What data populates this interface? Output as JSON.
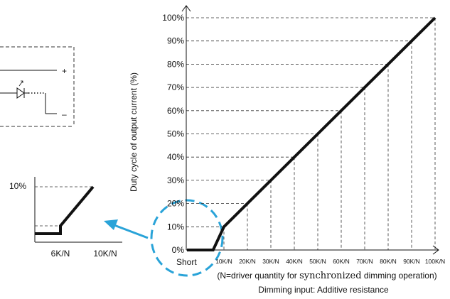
{
  "chart_data": {
    "type": "line",
    "ylabel": "Duty cycle of output current (%)",
    "xlabel_line1_pre": "(N=driver quantity for ",
    "xlabel_line1_serif": "synchronized",
    "xlabel_line1_post": " dimming operation)",
    "xlabel_line2": "Dimming input: Additive resistance",
    "x_categories": [
      "Short",
      "10K/N",
      "20K/N",
      "30K/N",
      "40K/N",
      "50K/N",
      "60K/N",
      "70K/N",
      "80K/N",
      "90K/N",
      "100K/N"
    ],
    "y_ticks": [
      "0%",
      "10%",
      "20%",
      "30%",
      "40%",
      "50%",
      "60%",
      "70%",
      "80%",
      "90%",
      "100%"
    ],
    "ylim": [
      0,
      100
    ],
    "grid": "dashed",
    "series": [
      {
        "x": [
          "Short",
          "6K/N",
          "10K/N",
          "20K/N",
          "30K/N",
          "40K/N",
          "50K/N",
          "60K/N",
          "70K/N",
          "80K/N",
          "90K/N",
          "100K/N"
        ],
        "values": [
          0,
          0,
          10,
          20,
          30,
          40,
          50,
          60,
          70,
          80,
          90,
          100
        ]
      }
    ]
  },
  "inset": {
    "y_label": "10%",
    "x_labels": [
      "6K/N",
      "10K/N"
    ],
    "values": [
      {
        "x": "6K/N",
        "y": 0
      },
      {
        "x": "10K/N",
        "y": 10
      }
    ]
  },
  "circuit": {
    "plus_label": "+",
    "minus_label": "–"
  },
  "colors": {
    "line": "#111111",
    "grid": "#333333",
    "highlight": "#29a3d8"
  }
}
